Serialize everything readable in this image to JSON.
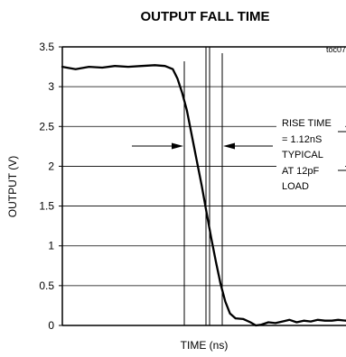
{
  "chart_data": {
    "type": "line",
    "title": "OUTPUT FALL TIME",
    "figure_code": "toc07",
    "xlabel": "TIME (ns)",
    "ylabel": "OUTPUT (V)",
    "ylim": [
      0,
      3.5
    ],
    "yticks": [
      "0",
      "0.5",
      "1",
      "1.5",
      "2",
      "2.5",
      "3",
      "3.5"
    ],
    "x_tick_labels_shown": false,
    "grid": "horizontal",
    "series": [
      {
        "points": [
          [
            0,
            3.25
          ],
          [
            1.7,
            3.22
          ],
          [
            3.4,
            3.25
          ],
          [
            5.1,
            3.24
          ],
          [
            6.7,
            3.26
          ],
          [
            8.4,
            3.25
          ],
          [
            10.1,
            3.26
          ],
          [
            11.8,
            3.27
          ],
          [
            13.1,
            3.26
          ],
          [
            14.1,
            3.22
          ],
          [
            14.7,
            3.1
          ],
          [
            15.3,
            2.92
          ],
          [
            15.9,
            2.7
          ],
          [
            16.5,
            2.4
          ],
          [
            17.1,
            2.1
          ],
          [
            17.8,
            1.75
          ],
          [
            18.4,
            1.42
          ],
          [
            19,
            1.1
          ],
          [
            19.6,
            0.8
          ],
          [
            20.2,
            0.52
          ],
          [
            20.8,
            0.3
          ],
          [
            21.4,
            0.15
          ],
          [
            22.1,
            0.09
          ],
          [
            23.1,
            0.08
          ],
          [
            24,
            0.04
          ],
          [
            24.7,
            0.0
          ],
          [
            25.4,
            0.01
          ],
          [
            26.3,
            0.04
          ],
          [
            27.2,
            0.03
          ],
          [
            28.1,
            0.05
          ],
          [
            29,
            0.07
          ],
          [
            29.9,
            0.04
          ],
          [
            30.8,
            0.06
          ],
          [
            31.7,
            0.05
          ],
          [
            32.6,
            0.07
          ],
          [
            33.5,
            0.06
          ],
          [
            34.4,
            0.06
          ],
          [
            35.2,
            0.07
          ],
          [
            36.2,
            0.06
          ]
        ]
      }
    ],
    "annotation": [
      "RISE TIME",
      "= 1.12nS",
      "TYPICAL",
      "AT 12pF",
      "LOAD"
    ]
  }
}
